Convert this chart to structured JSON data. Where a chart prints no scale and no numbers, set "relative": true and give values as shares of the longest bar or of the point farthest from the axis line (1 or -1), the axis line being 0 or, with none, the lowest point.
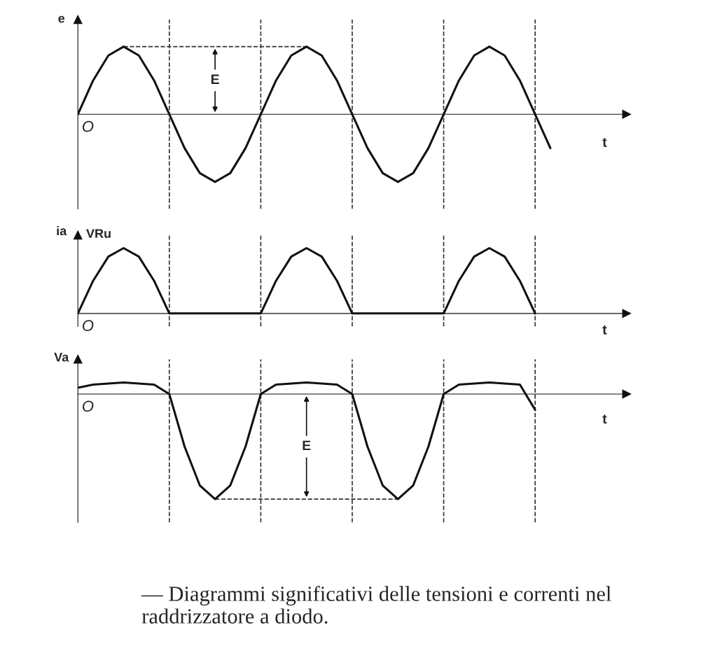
{
  "chart_data": [
    {
      "type": "line",
      "relative": true,
      "ylabel": "e",
      "xlabel": "t",
      "grid": "x",
      "categories": [
        null,
        null,
        null,
        null,
        null,
        null,
        null,
        null,
        null,
        null,
        null,
        null,
        null,
        null,
        null,
        null,
        null,
        null,
        null,
        null,
        null,
        null,
        null,
        null,
        null,
        null,
        null,
        null,
        null,
        null,
        null,
        null
      ],
      "series": [
        {
          "color": "#111111",
          "values": [
            0,
            0.5,
            0.87,
            1,
            0.87,
            0.5,
            0,
            -0.5,
            -0.87,
            -1,
            -0.87,
            -0.5,
            0,
            0.5,
            0.87,
            1,
            0.87,
            0.5,
            0,
            -0.5,
            -0.87,
            -1,
            -0.87,
            -0.5,
            0,
            0.5,
            0.87,
            1,
            0.87,
            0.5,
            0,
            -0.5
          ]
        }
      ],
      "annotations": [
        "O",
        "E"
      ]
    },
    {
      "type": "line",
      "relative": true,
      "ylabel": "ia",
      "xlabel": "t",
      "grid": "x",
      "categories": [
        null,
        null,
        null,
        null,
        null,
        null,
        null,
        null,
        null,
        null,
        null,
        null,
        null,
        null,
        null,
        null,
        null,
        null,
        null,
        null,
        null,
        null,
        null,
        null,
        null,
        null,
        null,
        null,
        null,
        null,
        null,
        null
      ],
      "series": [
        {
          "color": "#111111",
          "values": [
            0,
            0.5,
            0.87,
            1,
            0.87,
            0.5,
            0,
            0,
            0,
            0,
            0,
            0,
            0,
            0.5,
            0.87,
            1,
            0.87,
            0.5,
            0,
            0,
            0,
            0,
            0,
            0,
            0,
            0.5,
            0.87,
            1,
            0.87,
            0.5,
            0,
            null
          ]
        }
      ],
      "annotations": [
        "O",
        "VRu"
      ]
    },
    {
      "type": "line",
      "relative": true,
      "ylabel": "Va",
      "xlabel": "t",
      "grid": "x",
      "categories": [
        null,
        null,
        null,
        null,
        null,
        null,
        null,
        null,
        null,
        null,
        null,
        null,
        null,
        null,
        null,
        null,
        null,
        null,
        null,
        null,
        null,
        null,
        null,
        null,
        null,
        null,
        null,
        null,
        null,
        null,
        null,
        null
      ],
      "series": [
        {
          "color": "#111111",
          "values": [
            0.06,
            0.09,
            0.1,
            0.11,
            0.1,
            0.09,
            0,
            -0.5,
            -0.87,
            -1,
            -0.87,
            -0.5,
            0,
            0.09,
            0.1,
            0.11,
            0.1,
            0.09,
            0,
            -0.5,
            -0.87,
            -1,
            -0.87,
            -0.5,
            0,
            0.09,
            0.1,
            0.11,
            0.1,
            0.09,
            -0.15,
            null
          ]
        }
      ],
      "annotations": [
        "O",
        "E",
        "— Diagrammi significativi delle tensioni e correnti nel raddrizzatore a diodo."
      ]
    }
  ]
}
